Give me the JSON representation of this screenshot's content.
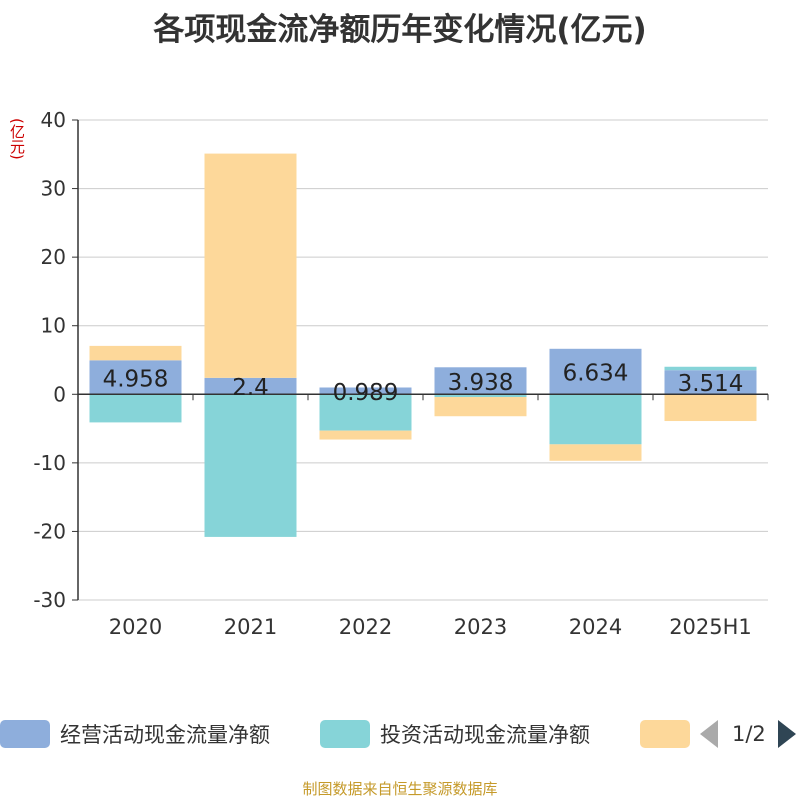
{
  "title": "各项现金流净额历年变化情况(亿元)",
  "unit_label": "(亿元)",
  "footer": "制图数据来自恒生聚源数据库",
  "legend": {
    "page_text": "1/2",
    "items": [
      {
        "label": "经营活动现金流量净额",
        "color": "#8eaedc"
      },
      {
        "label": "投资活动现金流量净额",
        "color": "#86d4d8"
      },
      {
        "label": "",
        "color": "#fdd89a"
      }
    ]
  },
  "chart_data": {
    "type": "bar",
    "stacked": true,
    "categories": [
      "2020",
      "2021",
      "2022",
      "2023",
      "2024",
      "2025H1"
    ],
    "ylim": [
      -30,
      40
    ],
    "yticks": [
      -30,
      -20,
      -10,
      0,
      10,
      20,
      30,
      40
    ],
    "grid": true,
    "series": [
      {
        "name": "经营活动现金流量净额",
        "color": "#8eaedc",
        "values": [
          4.958,
          2.4,
          0.989,
          3.938,
          6.634,
          3.514
        ],
        "labels": [
          "4.958",
          "2.4",
          "0.989",
          "3.938",
          "6.634",
          "3.514"
        ]
      },
      {
        "name": "投资活动现金流量净额",
        "color": "#86d4d8",
        "values": [
          -4.1,
          -20.8,
          -5.3,
          -0.4,
          -7.3,
          0.5
        ]
      },
      {
        "color": "#fdd89a",
        "values": [
          2.1,
          32.7,
          -1.3,
          -2.8,
          -2.4,
          -3.9
        ]
      }
    ]
  }
}
